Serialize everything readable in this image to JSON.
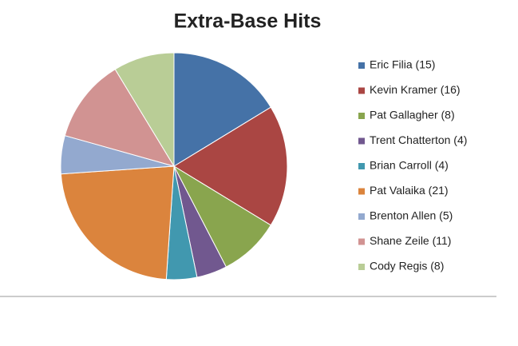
{
  "chart_data": {
    "type": "pie",
    "title": "Extra-Base Hits",
    "categories": [
      "Eric Filia (15)",
      "Kevin Kramer (16)",
      "Pat Gallagher (8)",
      "Trent Chatterton (4)",
      "Brian Carroll (4)",
      "Pat Valaika (21)",
      "Brenton Allen (5)",
      "Shane Zeile (11)",
      "Cody Regis (8)"
    ],
    "values": [
      15,
      16,
      8,
      4,
      4,
      21,
      5,
      11,
      8
    ],
    "colors": [
      "#4572a7",
      "#aa4643",
      "#89a54e",
      "#71588f",
      "#4198af",
      "#db843d",
      "#93a9cf",
      "#d19392",
      "#b9cd96"
    ],
    "legend": "right"
  }
}
